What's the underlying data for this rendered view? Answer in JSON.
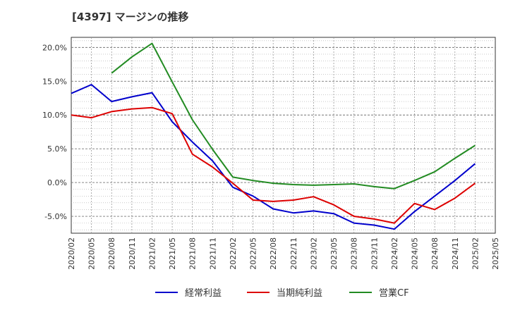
{
  "chart_data": {
    "type": "line",
    "title": "[4397]  マージンの推移",
    "xlabel": "",
    "ylabel": "",
    "categories": [
      "2020/02",
      "2020/05",
      "2020/08",
      "2020/11",
      "2021/02",
      "2021/05",
      "2021/08",
      "2021/11",
      "2022/02",
      "2022/05",
      "2022/08",
      "2022/11",
      "2023/02",
      "2023/05",
      "2023/08",
      "2023/11",
      "2024/02",
      "2024/05",
      "2024/08",
      "2024/11",
      "2025/02",
      "2025/05"
    ],
    "yticks": [
      "20.0%",
      "15.0%",
      "10.0%",
      "5.0%",
      "0.0%",
      "-5.0%"
    ],
    "ytick_values": [
      20,
      15,
      10,
      5,
      0,
      -5
    ],
    "ylim": [
      -7.5,
      21.5
    ],
    "grid": true,
    "legend_position": "bottom",
    "series": [
      {
        "name": "経常利益",
        "color": "#0000cc",
        "values": [
          13.2,
          14.5,
          12.0,
          12.7,
          13.3,
          9.0,
          6.0,
          3.2,
          -0.7,
          -2.0,
          -3.9,
          -4.5,
          -4.2,
          -4.6,
          -6.0,
          -6.3,
          -6.9,
          -4.3,
          -2.0,
          0.3,
          2.8,
          null
        ]
      },
      {
        "name": "当期純利益",
        "color": "#dd0000",
        "values": [
          10.0,
          9.6,
          10.5,
          10.9,
          11.1,
          10.2,
          4.2,
          2.3,
          -0.1,
          -2.6,
          -2.8,
          -2.6,
          -2.1,
          -3.3,
          -5.0,
          -5.4,
          -6.0,
          -3.1,
          -4.0,
          -2.3,
          -0.1,
          null
        ]
      },
      {
        "name": "営業CF",
        "color": "#228B22",
        "values": [
          null,
          null,
          16.2,
          18.6,
          20.6,
          14.9,
          9.3,
          4.9,
          0.8,
          0.3,
          -0.1,
          -0.3,
          -0.4,
          -0.3,
          -0.2,
          -0.6,
          -0.9,
          0.3,
          1.6,
          3.6,
          5.5,
          null
        ]
      }
    ]
  }
}
